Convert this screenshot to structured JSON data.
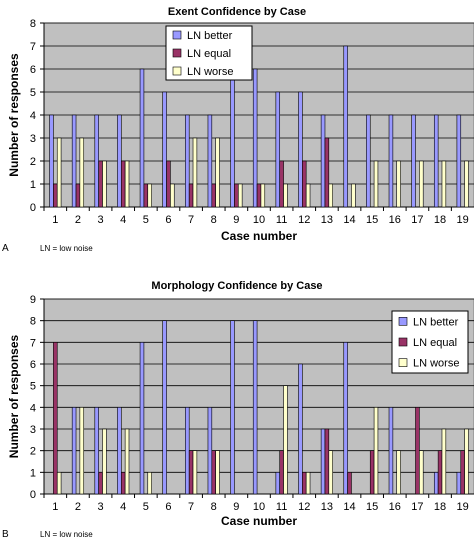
{
  "chart_data": [
    {
      "type": "bar",
      "title": "Exent Confidence by Case",
      "xlabel": "Case number",
      "ylabel": "Number of responses",
      "ylim": [
        0,
        8
      ],
      "yticks": [
        "0",
        "1",
        "2",
        "3",
        "4",
        "5",
        "6",
        "7",
        "8"
      ],
      "grid": true,
      "legend_position": "top-center",
      "categories": [
        "1",
        "2",
        "3",
        "4",
        "5",
        "6",
        "7",
        "8",
        "9",
        "10",
        "11",
        "12",
        "13",
        "14",
        "15",
        "16",
        "17",
        "18",
        "19"
      ],
      "series": [
        {
          "name": "LN better",
          "color": "#9999ff",
          "values": [
            4,
            4,
            4,
            4,
            6,
            5,
            4,
            4,
            6,
            6,
            5,
            5,
            4,
            7,
            4,
            4,
            4,
            4,
            4
          ]
        },
        {
          "name": "LN equal",
          "color": "#993366",
          "values": [
            1,
            1,
            2,
            2,
            1,
            2,
            1,
            1,
            1,
            1,
            2,
            2,
            3,
            0,
            0,
            0,
            0,
            0,
            0
          ]
        },
        {
          "name": "LN worse",
          "color": "#ffffcc",
          "values": [
            3,
            3,
            2,
            2,
            1,
            1,
            3,
            3,
            1,
            1,
            1,
            1,
            1,
            1,
            2,
            2,
            2,
            2,
            2
          ]
        }
      ],
      "panel_label": "A",
      "footnote": "LN = low noise"
    },
    {
      "type": "bar",
      "title": "Morphology Confidence by Case",
      "xlabel": "Case number",
      "ylabel": "Number of responses",
      "ylim": [
        0,
        9
      ],
      "yticks": [
        "0",
        "1",
        "2",
        "3",
        "4",
        "5",
        "6",
        "7",
        "8",
        "9"
      ],
      "grid": true,
      "legend_position": "top-right",
      "categories": [
        "1",
        "2",
        "3",
        "4",
        "5",
        "6",
        "7",
        "8",
        "9",
        "10",
        "11",
        "12",
        "13",
        "14",
        "15",
        "16",
        "17",
        "18",
        "19"
      ],
      "series": [
        {
          "name": "LN better",
          "color": "#9999ff",
          "values": [
            0,
            4,
            4,
            4,
            7,
            8,
            4,
            4,
            8,
            8,
            1,
            6,
            3,
            7,
            0,
            4,
            0,
            1,
            1
          ]
        },
        {
          "name": "LN equal",
          "color": "#993366",
          "values": [
            7,
            0,
            1,
            1,
            0,
            0,
            2,
            2,
            0,
            0,
            2,
            1,
            3,
            1,
            2,
            0,
            4,
            2,
            2
          ]
        },
        {
          "name": "LN worse",
          "color": "#ffffcc",
          "values": [
            1,
            4,
            3,
            3,
            1,
            0,
            2,
            2,
            0,
            0,
            5,
            1,
            2,
            0,
            4,
            2,
            2,
            3,
            3
          ]
        }
      ],
      "panel_label": "B",
      "footnote": "LN = low noise"
    }
  ]
}
